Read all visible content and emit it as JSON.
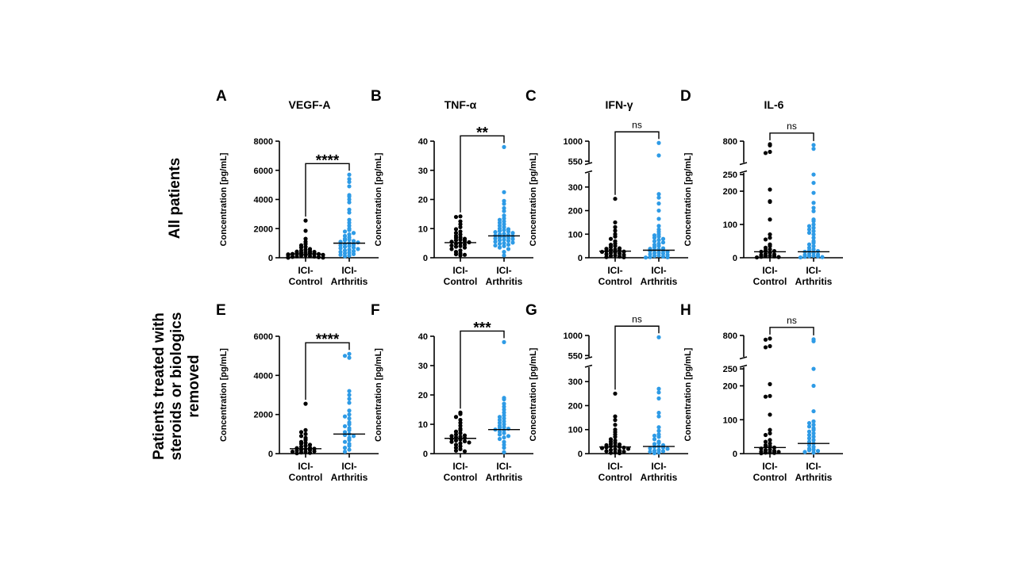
{
  "row_labels": [
    "All patients",
    [
      "Patients treated with",
      "steroids or biologics",
      "removed"
    ]
  ],
  "colors": {
    "control": "#000000",
    "arthritis": "#2e9be6",
    "axis": "#000000"
  },
  "chart_data": [
    {
      "panel": "A",
      "type": "scatter",
      "title": "VEGF-A",
      "ylabel": "Concentration [pg/mL]",
      "axis": {
        "type": "linear",
        "ylim": [
          0,
          8000
        ],
        "ticks": [
          0,
          2000,
          4000,
          6000,
          8000
        ]
      },
      "significance": "****",
      "categories": [
        "ICI-Control",
        "ICI-Arthritis"
      ],
      "category_lines": [
        [
          "ICI-",
          "Control"
        ],
        [
          "ICI-",
          "Arthritis"
        ]
      ],
      "medians": [
        250,
        1000
      ],
      "series": [
        {
          "name": "ICI-Control",
          "values": [
            2550,
            1850,
            1300,
            1100,
            950,
            850,
            750,
            700,
            600,
            550,
            500,
            450,
            420,
            400,
            380,
            350,
            320,
            300,
            280,
            260,
            250,
            230,
            200,
            180,
            160,
            140,
            120,
            100,
            80,
            60,
            40,
            20,
            10,
            5
          ]
        },
        {
          "name": "ICI-Arthritis",
          "values": [
            5700,
            5400,
            5200,
            4900,
            4300,
            4200,
            4000,
            3800,
            3300,
            3100,
            2600,
            2400,
            2200,
            2000,
            1900,
            1800,
            1700,
            1600,
            1500,
            1400,
            1300,
            1250,
            1200,
            1150,
            1100,
            1050,
            1000,
            950,
            900,
            850,
            800,
            750,
            700,
            650,
            600,
            550,
            500,
            450,
            400,
            350,
            300,
            250,
            200,
            150,
            100
          ]
        }
      ]
    },
    {
      "panel": "B",
      "type": "scatter",
      "title": "TNF-α",
      "ylabel": "Concentration [pg/mL]",
      "axis": {
        "type": "linear",
        "ylim": [
          0,
          40
        ],
        "ticks": [
          0,
          10,
          20,
          30,
          40
        ]
      },
      "significance": "**",
      "categories": [
        "ICI-Control",
        "ICI-Arthritis"
      ],
      "category_lines": [
        [
          "ICI-",
          "Control"
        ],
        [
          "ICI-",
          "Arthritis"
        ]
      ],
      "medians": [
        5.2,
        7.5
      ],
      "series": [
        {
          "name": "ICI-Control",
          "values": [
            14.2,
            14.0,
            12.5,
            11.5,
            10.5,
            9.8,
            9.0,
            8.5,
            8.0,
            7.5,
            7.0,
            6.8,
            6.5,
            6.2,
            6.0,
            5.8,
            5.5,
            5.3,
            5.0,
            4.8,
            4.5,
            4.2,
            4.0,
            3.8,
            3.5,
            3.0,
            2.5,
            2.0,
            1.5,
            1.2,
            1.0,
            0.8
          ]
        },
        {
          "name": "ICI-Arthritis",
          "values": [
            38.0,
            22.5,
            19.5,
            18.5,
            17.0,
            16.0,
            14.5,
            13.5,
            13.0,
            12.5,
            12.0,
            11.5,
            11.0,
            10.5,
            10.0,
            9.8,
            9.5,
            9.2,
            9.0,
            8.8,
            8.5,
            8.2,
            8.0,
            7.8,
            7.6,
            7.4,
            7.2,
            7.0,
            6.8,
            6.6,
            6.4,
            6.2,
            6.0,
            5.8,
            5.5,
            5.2,
            5.0,
            4.8,
            4.5,
            4.2,
            4.0,
            3.5,
            3.0,
            2.0,
            0.8
          ]
        }
      ]
    },
    {
      "panel": "C",
      "type": "scatter",
      "title": "IFN-γ",
      "ylabel": "Concentration [pg/mL]",
      "axis": {
        "type": "broken",
        "lower_ylim": [
          0,
          360
        ],
        "lower_ticks": [
          0,
          100,
          200,
          300
        ],
        "upper_ylim": [
          520,
          1000
        ],
        "upper_ticks": [
          550,
          1000
        ]
      },
      "significance": "ns",
      "categories": [
        "ICI-Control",
        "ICI-Arthritis"
      ],
      "category_lines": [
        [
          "ICI-",
          "Control"
        ],
        [
          "ICI-",
          "Arthritis"
        ]
      ],
      "medians": [
        28,
        32
      ],
      "series": [
        {
          "name": "ICI-Control",
          "values": [
            250,
            150,
            130,
            115,
            100,
            90,
            80,
            70,
            60,
            55,
            50,
            45,
            40,
            38,
            35,
            33,
            30,
            28,
            26,
            25,
            23,
            20,
            18,
            15,
            12,
            10,
            8,
            5,
            3,
            2
          ]
        },
        {
          "name": "ICI-Arthritis",
          "values": [
            960,
            680,
            270,
            255,
            230,
            200,
            165,
            135,
            120,
            110,
            100,
            95,
            90,
            85,
            80,
            75,
            70,
            65,
            60,
            55,
            50,
            45,
            40,
            38,
            35,
            33,
            30,
            28,
            25,
            22,
            20,
            18,
            15,
            12,
            10,
            8,
            5,
            3,
            2,
            1
          ]
        }
      ]
    },
    {
      "panel": "D",
      "type": "scatter",
      "title": "IL-6",
      "ylabel": "Concentration [pg/mL]",
      "axis": {
        "type": "broken",
        "lower_ylim": [
          0,
          255
        ],
        "lower_ticks": [
          0,
          100,
          200
        ],
        "upper_ylim": [
          240,
          800
        ],
        "upper_ticks": [
          250,
          800
        ]
      },
      "significance": "ns",
      "categories": [
        "ICI-Control",
        "ICI-Arthritis"
      ],
      "category_lines": [
        [
          "ICI-",
          "Control"
        ],
        [
          "ICI-",
          "Arthritis"
        ]
      ],
      "medians": [
        18,
        18
      ],
      "series": [
        {
          "name": "ICI-Control",
          "values": [
            720,
            690,
            520,
            490,
            205,
            170,
            168,
            115,
            70,
            60,
            55,
            40,
            35,
            30,
            25,
            22,
            20,
            18,
            15,
            12,
            10,
            8,
            6,
            5,
            4,
            3,
            2,
            1
          ]
        },
        {
          "name": "ICI-Arthritis",
          "values": [
            700,
            600,
            250,
            225,
            195,
            165,
            150,
            140,
            115,
            110,
            100,
            95,
            90,
            85,
            80,
            75,
            70,
            60,
            50,
            45,
            40,
            35,
            30,
            25,
            22,
            20,
            18,
            15,
            12,
            10,
            8,
            6,
            5,
            4,
            3,
            2,
            1
          ]
        }
      ]
    },
    {
      "panel": "E",
      "type": "scatter",
      "title": "",
      "ylabel": "Concentration [pg/mL]",
      "axis": {
        "type": "linear",
        "ylim": [
          0,
          6000
        ],
        "ticks": [
          0,
          2000,
          4000,
          6000
        ]
      },
      "significance": "****",
      "categories": [
        "ICI-Control",
        "ICI-Arthritis"
      ],
      "category_lines": [
        [
          "ICI-",
          "Control"
        ],
        [
          "ICI-",
          "Arthritis"
        ]
      ],
      "medians": [
        250,
        1000
      ],
      "series": [
        {
          "name": "ICI-Control",
          "values": [
            2550,
            1200,
            1100,
            1000,
            900,
            800,
            700,
            600,
            550,
            500,
            450,
            400,
            350,
            300,
            280,
            250,
            230,
            200,
            180,
            150,
            120,
            100,
            80,
            60,
            40,
            20
          ]
        },
        {
          "name": "ICI-Arthritis",
          "values": [
            5100,
            5000,
            4900,
            3200,
            3000,
            2800,
            2600,
            2200,
            2000,
            1900,
            1800,
            1600,
            1500,
            1400,
            1300,
            1200,
            1100,
            1000,
            950,
            900,
            800,
            700,
            600,
            500,
            400,
            300,
            200,
            100
          ]
        }
      ]
    },
    {
      "panel": "F",
      "type": "scatter",
      "title": "",
      "ylabel": "Concentration [pg/mL]",
      "axis": {
        "type": "linear",
        "ylim": [
          0,
          40
        ],
        "ticks": [
          0,
          10,
          20,
          30,
          40
        ]
      },
      "significance": "***",
      "categories": [
        "ICI-Control",
        "ICI-Arthritis"
      ],
      "category_lines": [
        [
          "ICI-",
          "Control"
        ],
        [
          "ICI-",
          "Arthritis"
        ]
      ],
      "medians": [
        5.2,
        8.2
      ],
      "series": [
        {
          "name": "ICI-Control",
          "values": [
            14.0,
            13.5,
            12.5,
            11.5,
            10.5,
            9.5,
            8.5,
            8.0,
            7.5,
            7.0,
            6.5,
            6.2,
            6.0,
            5.8,
            5.5,
            5.3,
            5.0,
            4.8,
            4.5,
            4.2,
            4.0,
            3.8,
            3.5,
            3.0,
            2.5,
            2.0,
            1.5,
            1.0,
            0.8
          ]
        },
        {
          "name": "ICI-Arthritis",
          "values": [
            38.0,
            19.0,
            18.5,
            17.0,
            16.0,
            15.0,
            14.0,
            13.0,
            12.5,
            12.0,
            11.5,
            11.0,
            10.5,
            10.0,
            9.5,
            9.0,
            8.8,
            8.5,
            8.2,
            8.0,
            7.5,
            7.0,
            6.5,
            6.0,
            5.5,
            5.0,
            4.0,
            3.0,
            2.0,
            0.5
          ]
        }
      ]
    },
    {
      "panel": "G",
      "type": "scatter",
      "title": "",
      "ylabel": "Concentration [pg/mL]",
      "axis": {
        "type": "broken",
        "lower_ylim": [
          0,
          360
        ],
        "lower_ticks": [
          0,
          100,
          200,
          300
        ],
        "upper_ylim": [
          520,
          1000
        ],
        "upper_ticks": [
          550,
          1000
        ]
      },
      "significance": "ns",
      "categories": [
        "ICI-Control",
        "ICI-Arthritis"
      ],
      "category_lines": [
        [
          "ICI-",
          "Control"
        ],
        [
          "ICI-",
          "Arthritis"
        ]
      ],
      "medians": [
        28,
        30
      ],
      "series": [
        {
          "name": "ICI-Control",
          "values": [
            250,
            155,
            140,
            120,
            100,
            90,
            80,
            70,
            60,
            55,
            50,
            45,
            40,
            38,
            35,
            33,
            30,
            28,
            26,
            25,
            23,
            20,
            18,
            15,
            12,
            10,
            8,
            5,
            3,
            2
          ]
        },
        {
          "name": "ICI-Arthritis",
          "values": [
            960,
            270,
            255,
            230,
            170,
            155,
            110,
            95,
            80,
            75,
            70,
            60,
            50,
            45,
            40,
            35,
            30,
            28,
            25,
            22,
            20,
            15,
            12,
            10,
            8,
            5,
            2
          ]
        }
      ]
    },
    {
      "panel": "H",
      "type": "scatter",
      "title": "",
      "ylabel": "Concentration [pg/mL]",
      "axis": {
        "type": "broken",
        "lower_ylim": [
          0,
          255
        ],
        "lower_ticks": [
          0,
          100,
          200
        ],
        "upper_ylim": [
          240,
          800
        ],
        "upper_ticks": [
          250,
          800
        ]
      },
      "significance": "ns",
      "categories": [
        "ICI-Control",
        "ICI-Arthritis"
      ],
      "category_lines": [
        [
          "ICI-",
          "Control"
        ],
        [
          "ICI-",
          "Arthritis"
        ]
      ],
      "medians": [
        18,
        30
      ],
      "series": [
        {
          "name": "ICI-Control",
          "values": [
            720,
            690,
            520,
            490,
            205,
            170,
            168,
            115,
            70,
            60,
            55,
            40,
            35,
            30,
            25,
            22,
            20,
            18,
            15,
            12,
            10,
            8,
            6,
            5,
            4,
            3,
            2,
            1
          ]
        },
        {
          "name": "ICI-Arthritis",
          "values": [
            700,
            650,
            250,
            200,
            125,
            95,
            90,
            85,
            80,
            75,
            70,
            65,
            60,
            55,
            50,
            45,
            40,
            35,
            30,
            25,
            20,
            15,
            12,
            10,
            8,
            5,
            3
          ]
        }
      ]
    }
  ]
}
